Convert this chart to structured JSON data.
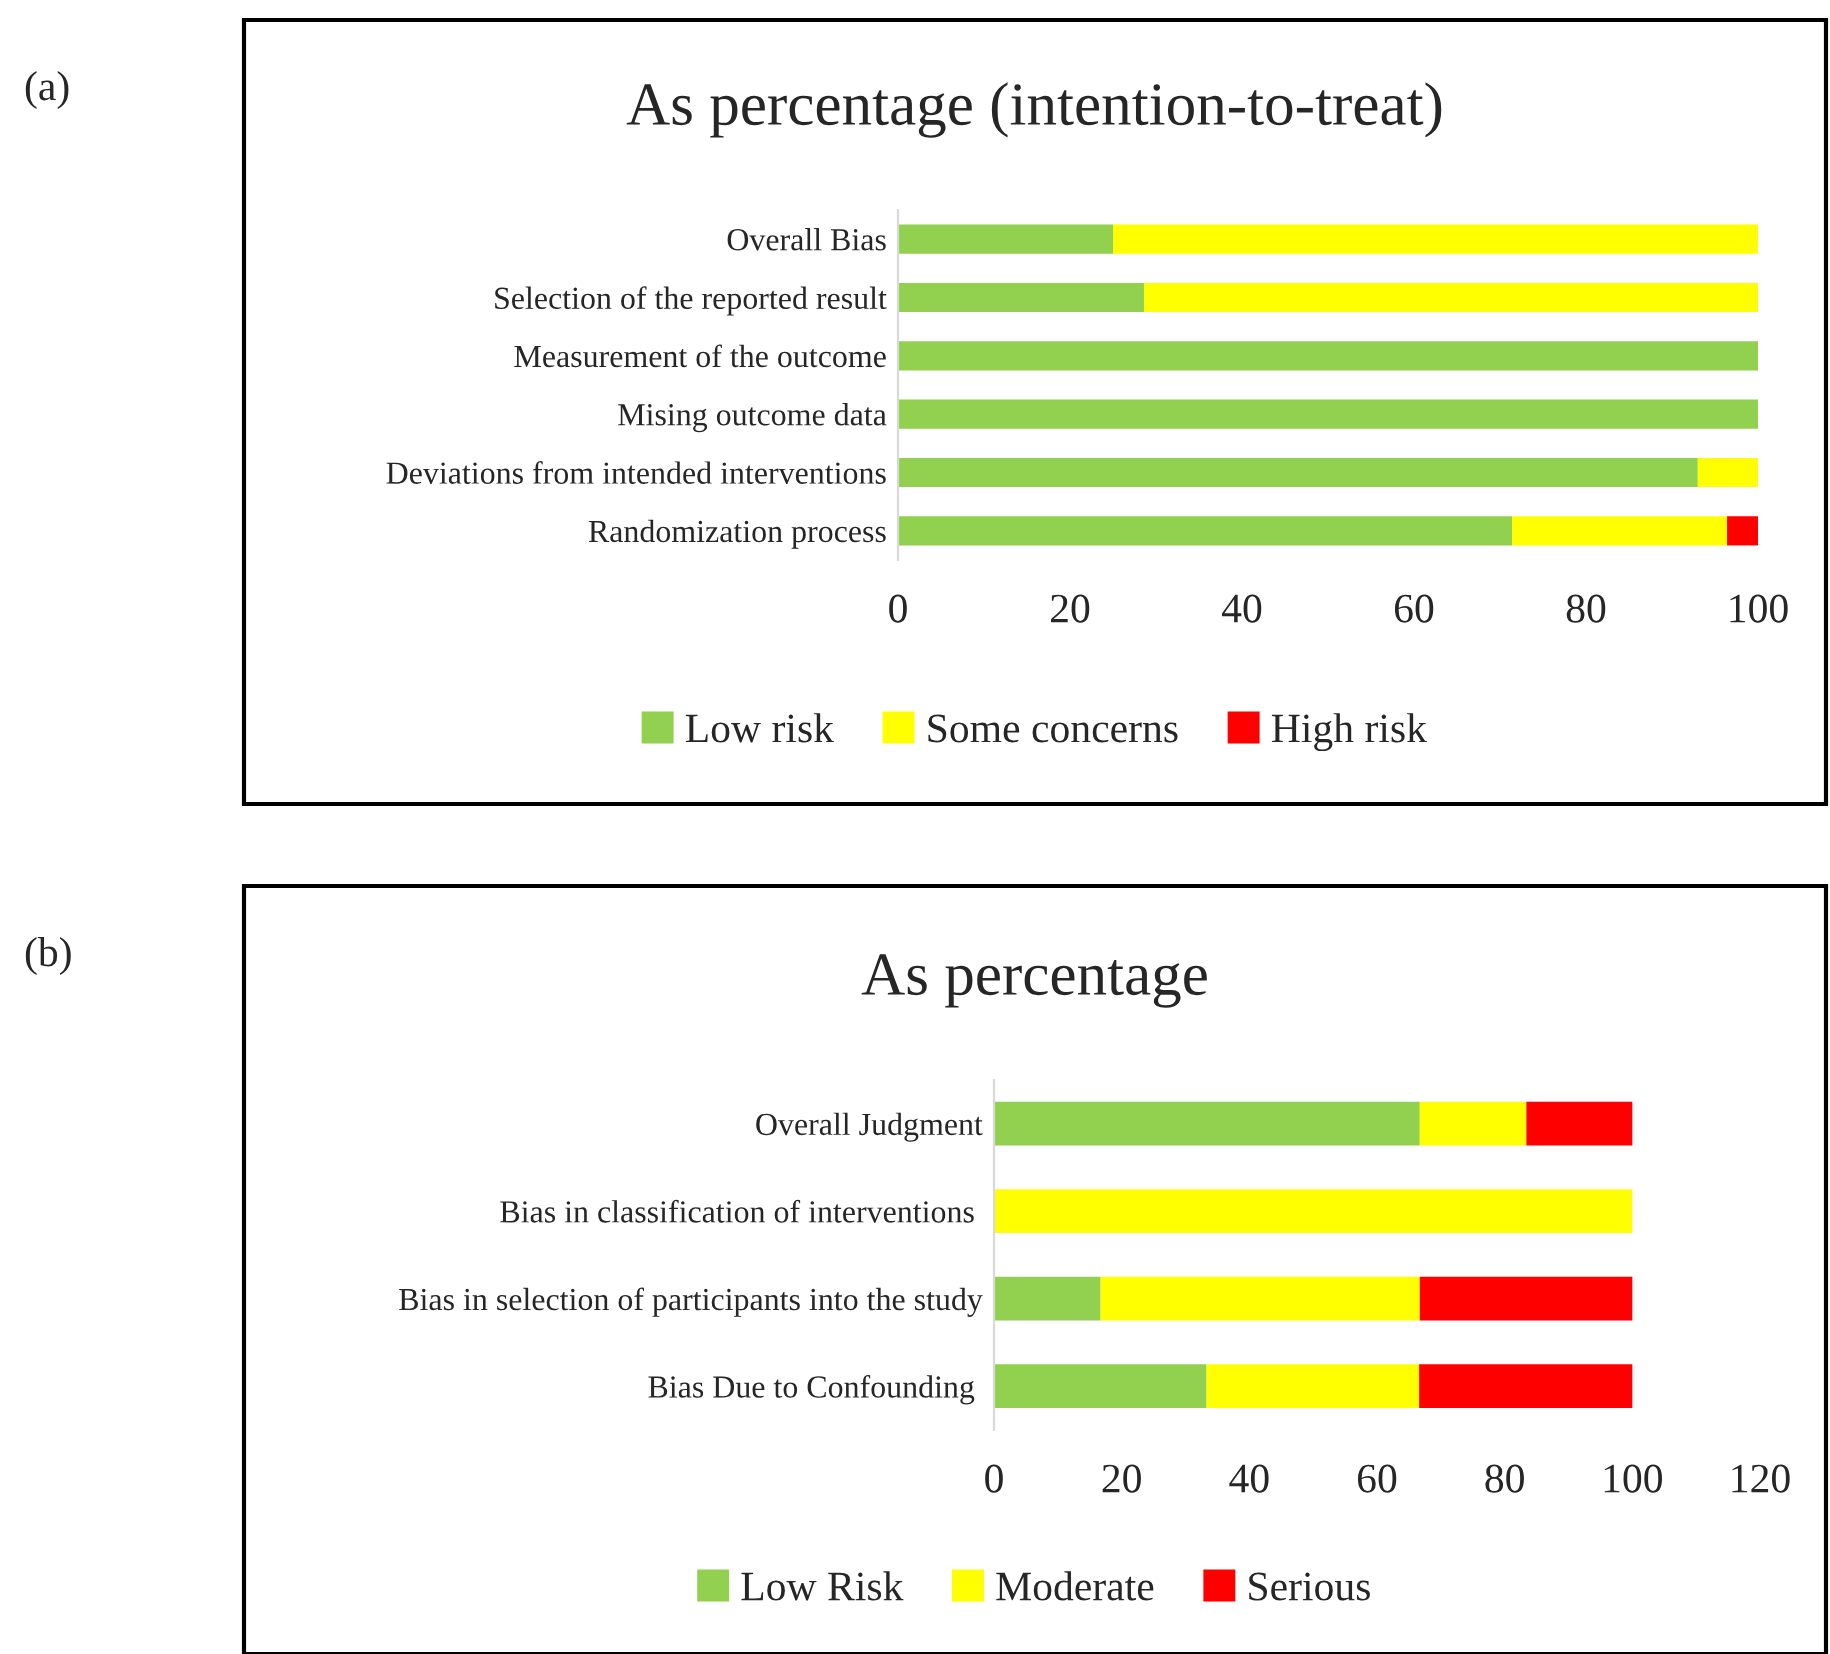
{
  "chart_data": [
    {
      "type": "bar",
      "orientation": "horizontal",
      "stacked": true,
      "title": "As percentage (intention-to-treat)",
      "annotations": [
        "(a)"
      ],
      "legend": "bottom",
      "grid": false,
      "categories": [
        "Overall Bias",
        "Selection of the reported result",
        "Measurement of the outcome",
        "Mising outcome data",
        "Deviations from intended interventions",
        "Randomization process"
      ],
      "xlim": [
        0,
        100
      ],
      "xticks": [
        0,
        20,
        40,
        60,
        80,
        100
      ],
      "series": [
        {
          "name": "Low risk",
          "color": "#92d050",
          "values": [
            25,
            28.6,
            100,
            100,
            93,
            71.4
          ]
        },
        {
          "name": "Some concerns",
          "color": "#ffff00",
          "values": [
            75,
            71.4,
            null,
            null,
            7,
            25
          ]
        },
        {
          "name": "High risk",
          "color": "#ff0000",
          "values": [
            null,
            null,
            null,
            null,
            null,
            3.6
          ]
        }
      ]
    },
    {
      "type": "bar",
      "orientation": "horizontal",
      "stacked": true,
      "title": "As percentage",
      "annotations": [
        "(b)"
      ],
      "legend": "bottom",
      "grid": false,
      "categories": [
        "Overall Judgment",
        "Bias in classification of interventions ",
        "Bias in selection of participants into the study",
        "Bias Due to Confounding "
      ],
      "xlim": [
        0,
        120
      ],
      "xticks": [
        0,
        20,
        40,
        60,
        80,
        100,
        120
      ],
      "series": [
        {
          "name": "Low Risk",
          "color": "#92d050",
          "values": [
            66.7,
            null,
            16.7,
            33.3
          ]
        },
        {
          "name": "Moderate",
          "color": "#ffff00",
          "values": [
            16.7,
            100,
            50,
            33.3
          ]
        },
        {
          "name": "Serious",
          "color": "#ff0000",
          "values": [
            16.6,
            null,
            33.3,
            33.4
          ]
        }
      ]
    }
  ]
}
